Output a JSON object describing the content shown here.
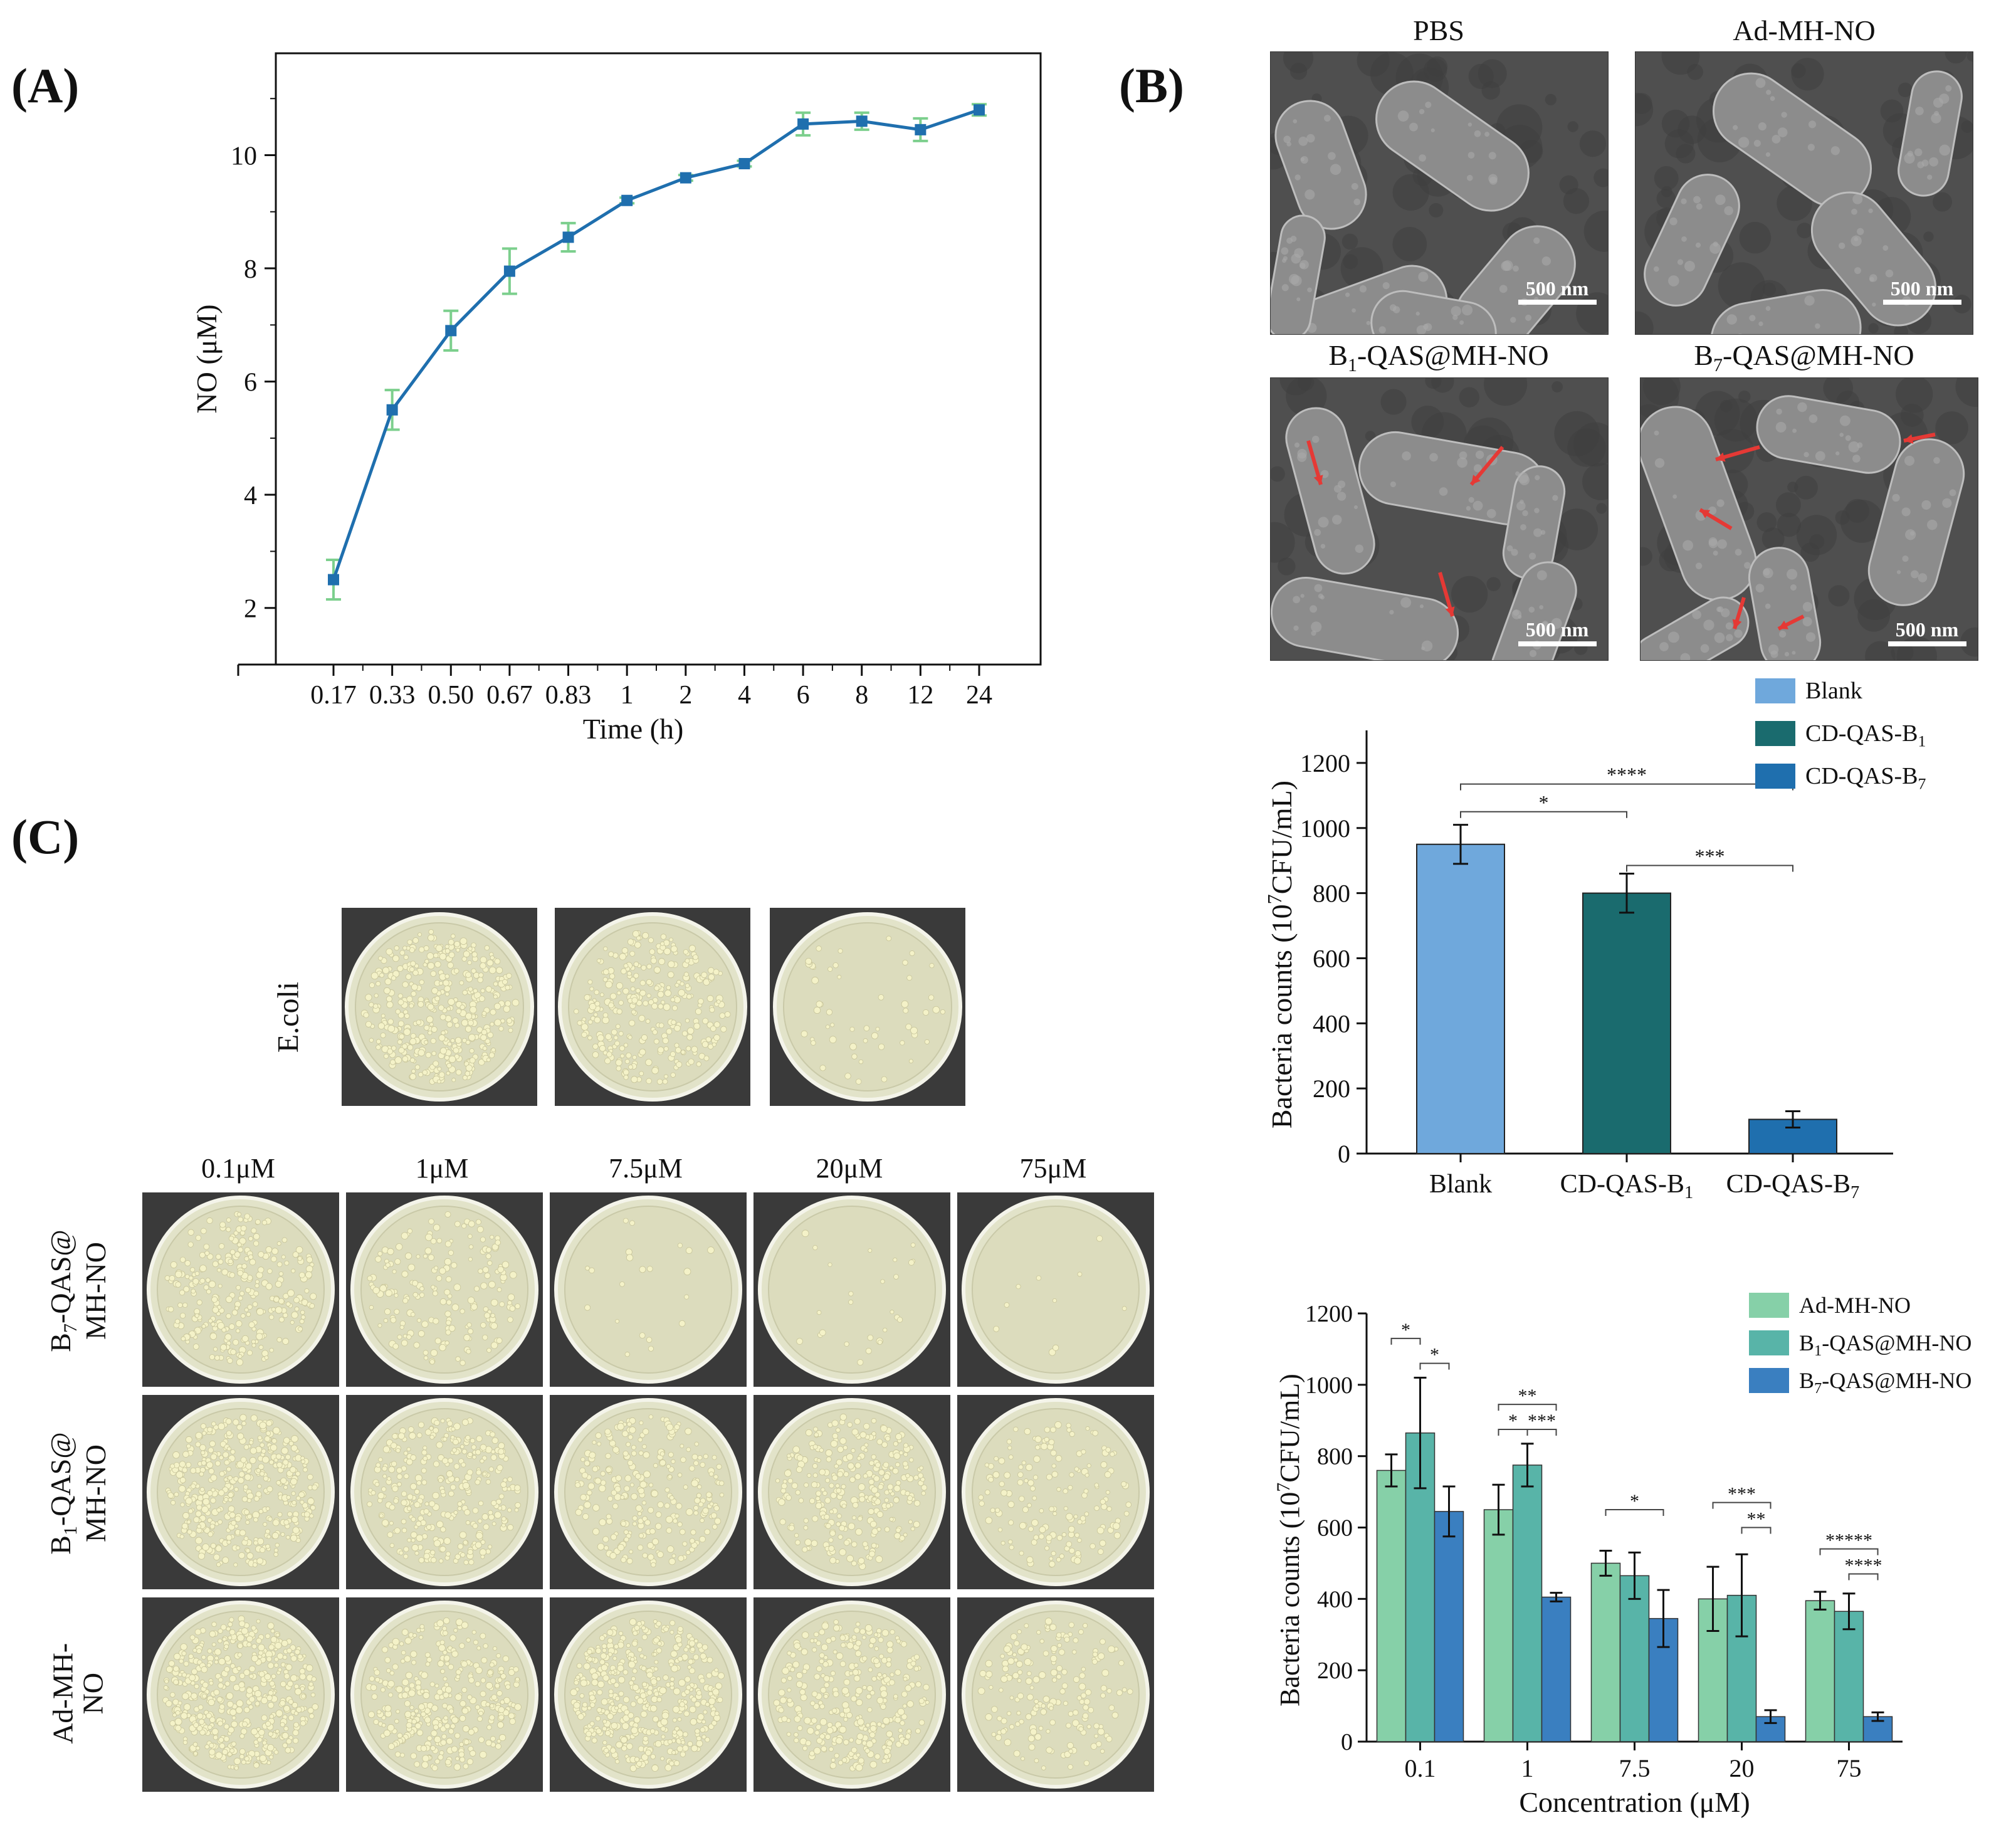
{
  "panels": {
    "a": "(A)",
    "b": "(B)",
    "c": "(C)"
  },
  "chart_data": [
    {
      "id": "A",
      "type": "line",
      "categories": [
        "0.17",
        "0.33",
        "0.50",
        "0.67",
        "0.83",
        "1",
        "2",
        "4",
        "6",
        "8",
        "12",
        "24"
      ],
      "values": [
        2.5,
        5.5,
        6.9,
        7.95,
        8.55,
        9.2,
        9.6,
        9.85,
        10.55,
        10.6,
        10.45,
        10.8
      ],
      "errors": [
        0.35,
        0.35,
        0.35,
        0.4,
        0.25,
        0.05,
        0.05,
        0.05,
        0.2,
        0.15,
        0.2,
        0.1
      ],
      "title": "",
      "xlabel": "Time (h)",
      "ylabel": "NO (μM)",
      "ylim": [
        1,
        11.8
      ],
      "yticks": [
        2,
        4,
        6,
        8,
        10
      ],
      "color": "#1f6fae",
      "error_color": "#7ccf8d"
    },
    {
      "id": "B-bar",
      "type": "bar",
      "categories": [
        "Blank",
        "CD-QAS-B1",
        "CD-QAS-B7"
      ],
      "category_labels": [
        "Blank",
        "CD-QAS-B",
        "CD-QAS-B"
      ],
      "category_subs": [
        "",
        "1",
        "7"
      ],
      "values": [
        950,
        800,
        105
      ],
      "errors": [
        60,
        60,
        25
      ],
      "colors": [
        "#6fa8dc",
        "#1a6b6e",
        "#1f6fae"
      ],
      "legend": [
        {
          "label": "Blank",
          "sub": ""
        },
        {
          "label": "CD-QAS-B",
          "sub": "1"
        },
        {
          "label": "CD-QAS-B",
          "sub": "7"
        }
      ],
      "xlabel": "",
      "ylabel_pre": "Bacteria counts (10",
      "ylabel_sup": "7",
      "ylabel_post": "CFU/mL)",
      "ylim": [
        0,
        1300
      ],
      "yticks": [
        0,
        200,
        400,
        600,
        800,
        1000,
        1200
      ],
      "significance": [
        {
          "from": 0,
          "to": 1,
          "label": "*"
        },
        {
          "from": 0,
          "to": 2,
          "label": "****"
        },
        {
          "from": 1,
          "to": 2,
          "label": "***"
        }
      ]
    },
    {
      "id": "C-bar",
      "type": "bar",
      "categories": [
        "0.1",
        "1",
        "7.5",
        "20",
        "75"
      ],
      "series": [
        {
          "name": "Ad-MH-NO",
          "label": "Ad-MH-NO",
          "sub": "",
          "suffix": "",
          "color": "#86d0a8",
          "values": [
            760,
            650,
            500,
            400,
            395
          ],
          "errors": [
            45,
            70,
            35,
            90,
            25
          ]
        },
        {
          "name": "B1-QAS@MH-NO",
          "label": "B",
          "sub": "1",
          "suffix": "-QAS@MH-NO",
          "color": "#58b4a8",
          "values": [
            865,
            775,
            465,
            410,
            365
          ],
          "errors": [
            155,
            60,
            65,
            115,
            50
          ]
        },
        {
          "name": "B7-QAS@MH-NO",
          "label": "B",
          "sub": "7",
          "suffix": "-QAS@MH-NO",
          "color": "#3a7fc0",
          "values": [
            645,
            405,
            345,
            70,
            70
          ],
          "errors": [
            70,
            12,
            80,
            18,
            12
          ]
        }
      ],
      "xlabel": "Concentration (μM)",
      "ylabel_pre": "Bacteria counts (10",
      "ylabel_sup": "7",
      "ylabel_post": "CFU/mL)",
      "ylim": [
        0,
        1200
      ],
      "yticks": [
        0,
        200,
        400,
        600,
        800,
        1000,
        1200
      ],
      "significance": [
        {
          "group": 0,
          "from": 0,
          "to": 1,
          "label": "*",
          "level": 0
        },
        {
          "group": 0,
          "from": 1,
          "to": 2,
          "label": "*",
          "level": 1
        },
        {
          "group": 1,
          "from": 0,
          "to": 2,
          "label": "**",
          "level": 0
        },
        {
          "group": 1,
          "from": 0,
          "to": 1,
          "label": "*",
          "level": 1
        },
        {
          "group": 1,
          "from": 1,
          "to": 2,
          "label": "***",
          "level": 1
        },
        {
          "group": 2,
          "from": 0,
          "to": 2,
          "label": "*",
          "level": 0
        },
        {
          "group": 3,
          "from": 0,
          "to": 2,
          "label": "***",
          "level": 0
        },
        {
          "group": 3,
          "from": 1,
          "to": 2,
          "label": "**",
          "level": 1
        },
        {
          "group": 4,
          "from": 0,
          "to": 2,
          "label": "*****",
          "level": 0
        },
        {
          "group": 4,
          "from": 1,
          "to": 2,
          "label": "****",
          "level": 1
        }
      ]
    }
  ],
  "sem": {
    "titles": {
      "pbs": "PBS",
      "ad": "Ad-MH-NO",
      "b1_pre": "B",
      "b1_sub": "1",
      "b1_post": "-QAS@MH-NO",
      "b7_pre": "B",
      "b7_sub": "7",
      "b7_post": "-QAS@MH-NO"
    },
    "scale": "500 nm"
  },
  "plates": {
    "ecoli_label": "E.coli",
    "concentrations": [
      "0.1μM",
      "1μM",
      "7.5μM",
      "20μM",
      "75μM"
    ],
    "rows": [
      {
        "pre": "B",
        "sub": "7",
        "post": "-QAS@",
        "line2": "MH-NO",
        "density": [
          0.55,
          0.35,
          0.04,
          0.05,
          0.02
        ]
      },
      {
        "pre": "B",
        "sub": "1",
        "post": "-QAS@",
        "line2": "MH-NO",
        "density": [
          0.8,
          0.6,
          0.5,
          0.55,
          0.3
        ]
      },
      {
        "pre": "Ad-MH-",
        "sub": "",
        "post": "",
        "line2": "NO",
        "density": [
          0.9,
          0.65,
          0.85,
          0.6,
          0.35
        ]
      }
    ],
    "ecoli_density": [
      0.75,
      0.55,
      0.1
    ]
  }
}
